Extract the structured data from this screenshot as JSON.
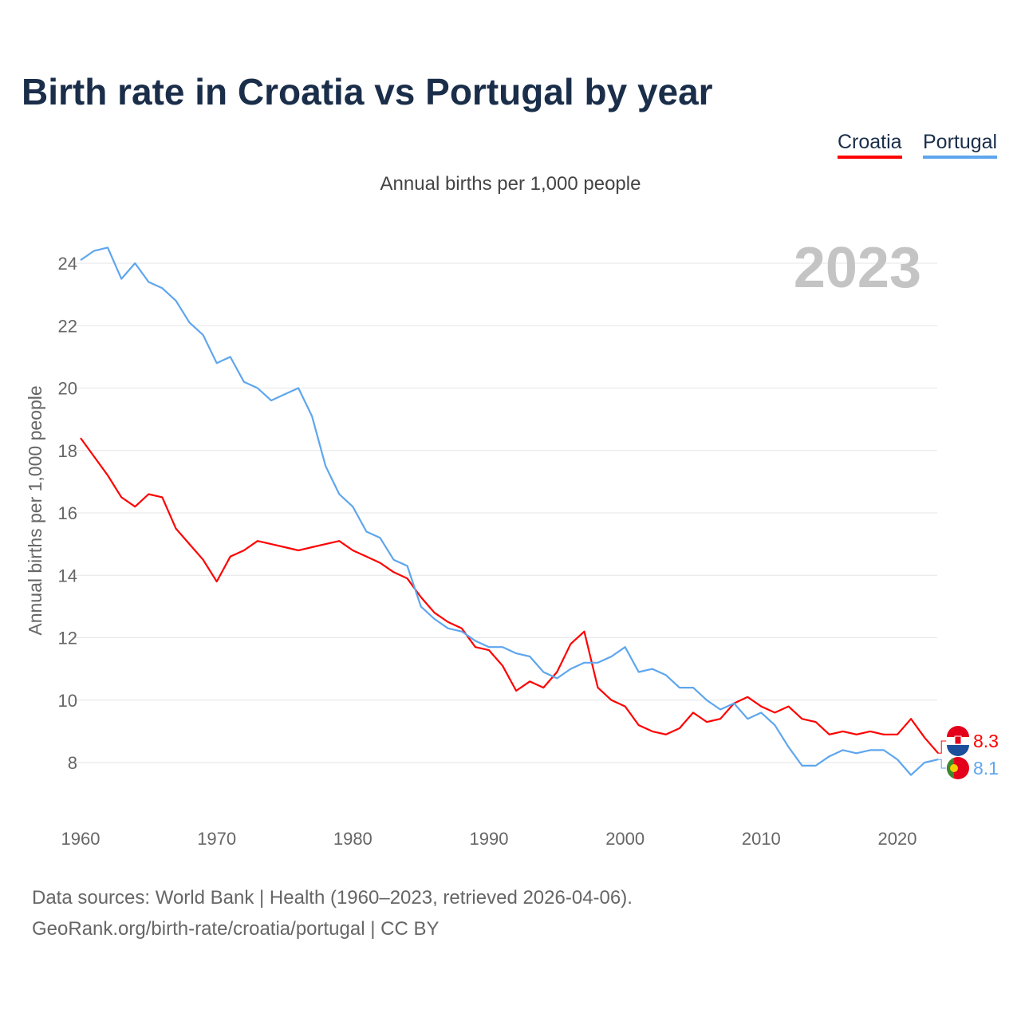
{
  "title": "Birth rate in Croatia vs Portugal by year",
  "legend": [
    "Croatia",
    "Portugal"
  ],
  "footer": {
    "line1": "Data sources: World Bank | Health (1960–2023, retrieved 2026-04-06).",
    "line2": "GeoRank.org/birth-rate/croatia/portugal | CC BY"
  },
  "chart_data": {
    "type": "line",
    "title": "Birth rate in Croatia vs Portugal by year",
    "subtitle": "Annual births per 1,000 people",
    "ylabel": "Annual births per 1,000 people",
    "xlabel": "",
    "year_watermark": "2023",
    "xlim": [
      1960,
      2023
    ],
    "ylim": [
      6.5,
      25
    ],
    "xticks": [
      1960,
      1970,
      1980,
      1990,
      2000,
      2010,
      2020
    ],
    "yticks": [
      8,
      10,
      12,
      14,
      16,
      18,
      20,
      22,
      24
    ],
    "grid": true,
    "legend_position": "top-right",
    "x_start": 1960,
    "series": [
      {
        "name": "Croatia",
        "color": "#ff0000",
        "end_label": "8.3",
        "values": [
          18.4,
          17.8,
          17.2,
          16.5,
          16.2,
          16.6,
          16.5,
          15.5,
          15.0,
          14.5,
          13.8,
          14.6,
          14.8,
          15.1,
          15.0,
          14.9,
          14.8,
          14.9,
          15.0,
          15.1,
          14.8,
          14.6,
          14.4,
          14.1,
          13.9,
          13.3,
          12.8,
          12.5,
          12.3,
          11.7,
          11.6,
          11.1,
          10.3,
          10.6,
          10.4,
          10.9,
          11.8,
          12.2,
          10.4,
          10.0,
          9.8,
          9.2,
          9.0,
          8.9,
          9.1,
          9.6,
          9.3,
          9.4,
          9.9,
          10.1,
          9.8,
          9.6,
          9.8,
          9.4,
          9.3,
          8.9,
          9.0,
          8.9,
          9.0,
          8.9,
          8.9,
          9.4,
          8.8,
          8.3
        ]
      },
      {
        "name": "Portugal",
        "color": "#5ea6ee",
        "end_label": "8.1",
        "values": [
          24.1,
          24.4,
          24.5,
          23.5,
          24.0,
          23.4,
          23.2,
          22.8,
          22.1,
          21.7,
          20.8,
          21.0,
          20.2,
          20.0,
          19.6,
          19.8,
          20.0,
          19.1,
          17.5,
          16.6,
          16.2,
          15.4,
          15.2,
          14.5,
          14.3,
          13.0,
          12.6,
          12.3,
          12.2,
          11.9,
          11.7,
          11.7,
          11.5,
          11.4,
          10.9,
          10.7,
          11.0,
          11.2,
          11.2,
          11.4,
          11.7,
          10.9,
          11.0,
          10.8,
          10.4,
          10.4,
          10.0,
          9.7,
          9.9,
          9.4,
          9.6,
          9.2,
          8.5,
          7.9,
          7.9,
          8.2,
          8.4,
          8.3,
          8.4,
          8.4,
          8.1,
          7.6,
          8.0,
          8.1
        ]
      }
    ]
  }
}
